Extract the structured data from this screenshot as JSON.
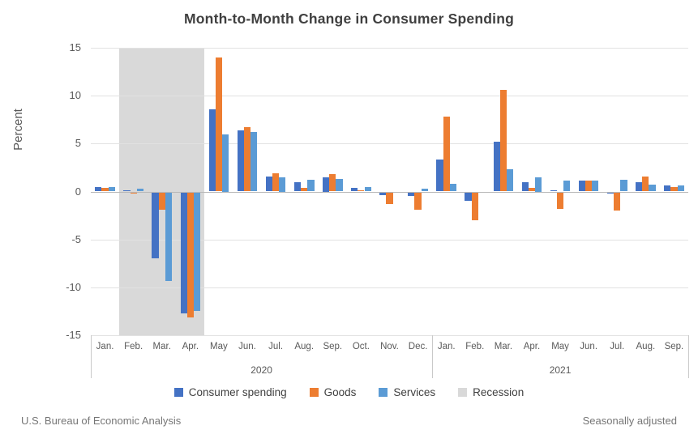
{
  "title": "Month-to-Month Change in Consumer Spending",
  "footer": {
    "left": "U.S. Bureau of Economic Analysis",
    "right": "Seasonally adjusted"
  },
  "legend": [
    {
      "label": "Consumer spending",
      "color": "#4472C4"
    },
    {
      "label": "Goods",
      "color": "#ED7D31"
    },
    {
      "label": "Services",
      "color": "#5B9BD5"
    },
    {
      "label": "Recession",
      "color": "#D9D9D9"
    }
  ],
  "chart_data": {
    "type": "bar",
    "title": "Month-to-Month Change in Consumer Spending",
    "xlabel": "",
    "ylabel": "Percent",
    "ylim": [
      -15,
      15
    ],
    "yticks": [
      15,
      10,
      5,
      0,
      -5,
      -10,
      -15
    ],
    "grid": true,
    "legend_position": "bottom",
    "categories": [
      "Jan.",
      "Feb.",
      "Mar.",
      "Apr.",
      "May",
      "Jun.",
      "Jul.",
      "Aug.",
      "Sep.",
      "Oct.",
      "Nov.",
      "Dec.",
      "Jan.",
      "Feb.",
      "Mar.",
      "Apr.",
      "May",
      "Jun.",
      "Jul.",
      "Aug.",
      "Sep."
    ],
    "year_groups": [
      {
        "label": "2020",
        "months": 12
      },
      {
        "label": "2021",
        "months": 9
      }
    ],
    "recession": {
      "start_index": 1,
      "end_index": 3
    },
    "recession_color": "#D9D9D9",
    "series": [
      {
        "name": "Consumer spending",
        "color": "#4472C4",
        "values": [
          0.5,
          0.1,
          -7.0,
          -12.7,
          8.6,
          6.4,
          1.6,
          1.0,
          1.5,
          0.4,
          -0.4,
          -0.5,
          3.3,
          -1.0,
          5.2,
          1.0,
          0.1,
          1.1,
          -0.2,
          1.0,
          0.6
        ]
      },
      {
        "name": "Goods",
        "color": "#ED7D31",
        "values": [
          0.4,
          -0.2,
          -1.9,
          -13.1,
          14.0,
          6.7,
          1.9,
          0.4,
          1.8,
          0.1,
          -1.3,
          -1.9,
          7.8,
          -3.0,
          10.6,
          0.4,
          -1.8,
          1.1,
          -2.0,
          1.6,
          0.5
        ]
      },
      {
        "name": "Services",
        "color": "#5B9BD5",
        "values": [
          0.5,
          0.3,
          -9.3,
          -12.5,
          6.0,
          6.2,
          1.5,
          1.2,
          1.3,
          0.5,
          -0.1,
          0.3,
          0.8,
          -0.1,
          2.3,
          1.5,
          1.1,
          1.1,
          1.2,
          0.7,
          0.6
        ]
      }
    ]
  }
}
